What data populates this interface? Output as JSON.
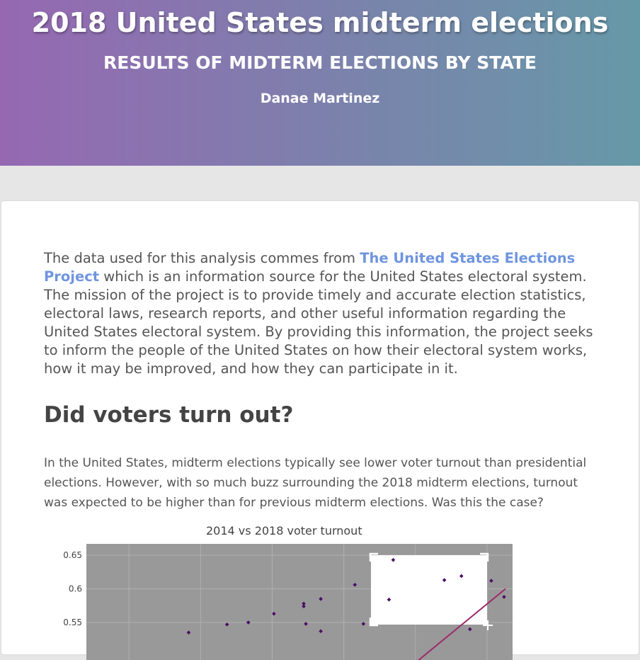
{
  "header": {
    "title": "2018 United States midterm elections",
    "subtitle": "RESULTS OF MIDTERM ELECTIONS BY STATE",
    "author": "Danae Martinez"
  },
  "intro": {
    "before_link": "The data used for this analysis commes from ",
    "link_text": "The United States Elections Project",
    "after_link": " which is an information source for the United States electoral system. The mission of the project is to provide timely and accurate election statistics, electoral laws, research reports, and other useful information regarding the United States electoral system. By providing this information, the project seeks to inform the people of the United States on how their electoral system works, how it may be improved, and how they can participate in it."
  },
  "section": {
    "heading": "Did voters turn out?",
    "paragraph": "In the United States, midterm elections typically see lower voter turnout than presidential elections. However, with so much buzz surrounding the 2018 midterm elections, turnout was expected to be higher than for previous midterm elections. Was this the case?"
  },
  "colors": {
    "plot_bg": "#999999",
    "point": "#4b0f66",
    "trend_line": "#9e2a6a",
    "link": "#6f95e0"
  },
  "chart_data": {
    "type": "scatter",
    "title": "2014 vs 2018 voter turnout",
    "xlabel": "",
    "ylabel": "",
    "ylim": [
      0.5,
      0.665
    ],
    "xlim": [
      0,
      1
    ],
    "y_ticks": [
      "0.65",
      "0.6",
      "0.55"
    ],
    "y_tick_values": [
      0.65,
      0.6,
      0.55
    ],
    "grid": true,
    "selection_box": true,
    "points": [
      {
        "x": 0.24,
        "y": 0.535
      },
      {
        "x": 0.33,
        "y": 0.547
      },
      {
        "x": 0.38,
        "y": 0.55
      },
      {
        "x": 0.44,
        "y": 0.563
      },
      {
        "x": 0.51,
        "y": 0.578
      },
      {
        "x": 0.51,
        "y": 0.574
      },
      {
        "x": 0.515,
        "y": 0.548
      },
      {
        "x": 0.55,
        "y": 0.585
      },
      {
        "x": 0.55,
        "y": 0.537
      },
      {
        "x": 0.63,
        "y": 0.606
      },
      {
        "x": 0.65,
        "y": 0.548
      },
      {
        "x": 0.71,
        "y": 0.584
      },
      {
        "x": 0.72,
        "y": 0.643
      },
      {
        "x": 0.84,
        "y": 0.613
      },
      {
        "x": 0.88,
        "y": 0.619
      },
      {
        "x": 0.9,
        "y": 0.54
      },
      {
        "x": 0.95,
        "y": 0.612
      },
      {
        "x": 0.98,
        "y": 0.588
      }
    ],
    "trend": [
      {
        "x": 0.78,
        "y": 0.5
      },
      {
        "x": 1.0,
        "y": 0.6
      }
    ]
  }
}
